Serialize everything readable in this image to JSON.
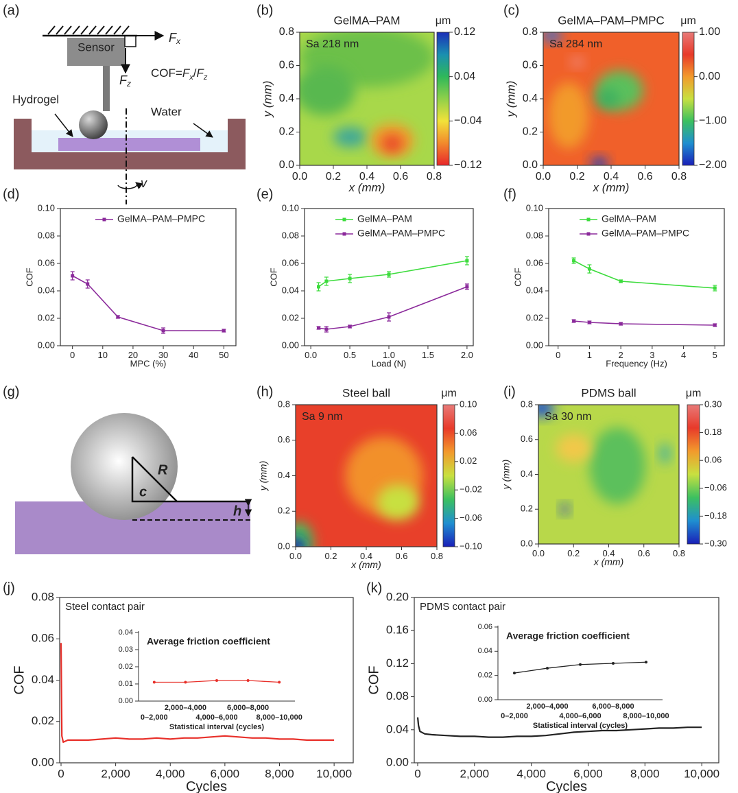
{
  "panel_labels": [
    "(a)",
    "(b)",
    "(c)",
    "(d)",
    "(e)",
    "(f)",
    "(g)",
    "(h)",
    "(i)",
    "(j)",
    "(k)"
  ],
  "diagram_a": {
    "sensor": "Sensor",
    "fx": {
      "text": "F",
      "sub": "x"
    },
    "fz": {
      "text": "F",
      "sub": "z"
    },
    "formula": {
      "lhs": "COF=",
      "num": {
        "text": "F",
        "sub": "x"
      },
      "sep": "/",
      "den": {
        "text": "F",
        "sub": "z"
      }
    },
    "hydrogel": "Hydrogel",
    "water": "Water",
    "speed": "v"
  },
  "diagram_g": {
    "radius": "R",
    "chord": "c",
    "depth": "h"
  },
  "chart_data": [
    {
      "type": "heatmap",
      "title": "GelMA–PAM",
      "annotation": "Sa 218 nm",
      "xlabel": "x (mm)",
      "ylabel": "y (mm)",
      "xlim": [
        0,
        0.8
      ],
      "ylim": [
        0,
        0.8
      ],
      "xticks": [
        {
          "value": 0,
          "label": "0.0"
        },
        0.2,
        0.4,
        0.6,
        0.8
      ],
      "yticks": [
        {
          "value": 0,
          "label": "0.0"
        },
        0.2,
        0.4,
        0.6,
        0.8
      ],
      "colorbar_label": "μm",
      "clim": [
        -0.12,
        0.12
      ],
      "cticks": [
        0.12,
        0.04,
        {
          "value": -0.04,
          "label": "−0.04"
        },
        {
          "value": -0.12,
          "label": "−0.12"
        }
      ],
      "colorscale": [
        "#e8262a",
        "#f28a2c",
        "#f2e23a",
        "#8fd04a",
        "#2fb85a",
        "#1a8fb0",
        "#1b2fb8"
      ]
    },
    {
      "type": "heatmap",
      "title": "GelMA–PAM–PMPC",
      "annotation": "Sa 284 nm",
      "xlabel": "x (mm)",
      "ylabel": "y (mm)",
      "xlim": [
        0,
        0.8
      ],
      "ylim": [
        0,
        0.8
      ],
      "xticks": [
        {
          "value": 0,
          "label": "0.0"
        },
        0.2,
        0.4,
        0.6,
        0.8
      ],
      "yticks": [
        {
          "value": 0,
          "label": "0.0"
        },
        0.2,
        0.4,
        0.6,
        0.8
      ],
      "colorbar_label": "μm",
      "clim": [
        -2,
        1
      ],
      "cticks": [
        {
          "value": 1,
          "label": "1.00"
        },
        {
          "value": 0,
          "label": "0.00"
        },
        {
          "value": -1,
          "label": "−1.00"
        },
        {
          "value": -2,
          "label": "−2.00"
        }
      ],
      "colorscale": [
        "#1a1fb8",
        "#1f8fd0",
        "#3cc060",
        "#c8e040",
        "#f29a2c",
        "#e83a2a",
        "#e87a78"
      ]
    },
    {
      "type": "line",
      "xlabel": "MPC (%)",
      "ylabel": "COF",
      "x": [
        0,
        5,
        15,
        30,
        50
      ],
      "xlim": [
        -4,
        54
      ],
      "xticks": [
        0,
        10,
        20,
        30,
        40,
        50
      ],
      "ylim": [
        0,
        0.1
      ],
      "yticks": [
        {
          "value": 0,
          "label": "0.00"
        },
        0.02,
        0.04,
        0.06,
        0.08,
        {
          "value": 0.1,
          "label": "0.10"
        }
      ],
      "legend": "upper right",
      "markers": true,
      "series": [
        {
          "name": "GelMA–PAM–PMPC",
          "color": "#8b2a9b",
          "values": [
            0.051,
            0.045,
            0.021,
            0.011,
            0.011
          ],
          "errors": [
            0.003,
            0.003,
            0.001,
            0.002,
            0.001
          ]
        }
      ]
    },
    {
      "type": "line",
      "xlabel": "Load (N)",
      "ylabel": "COF",
      "x": [
        0.1,
        0.2,
        0.5,
        1,
        2
      ],
      "xlim": [
        -0.08,
        2.08
      ],
      "xticks": [
        {
          "value": 0,
          "label": "0.0"
        },
        0.5,
        {
          "value": 1,
          "label": "1.0"
        },
        1.5,
        {
          "value": 2,
          "label": "2.0"
        }
      ],
      "ylim": [
        0,
        0.1
      ],
      "yticks": [
        {
          "value": 0,
          "label": "0.00"
        },
        0.02,
        0.04,
        0.06,
        0.08,
        {
          "value": 0.1,
          "label": "0.10"
        }
      ],
      "legend": "upper left",
      "markers": true,
      "series": [
        {
          "name": "GelMA–PAM",
          "color": "#3ddc3d",
          "values": [
            0.043,
            0.047,
            0.049,
            0.052,
            0.062
          ],
          "errors": [
            0.003,
            0.003,
            0.003,
            0.002,
            0.003
          ]
        },
        {
          "name": "GelMA–PAM–PMPC",
          "color": "#8b2a9b",
          "values": [
            0.013,
            0.012,
            0.014,
            0.021,
            0.043
          ],
          "errors": [
            0.001,
            0.002,
            0.001,
            0.003,
            0.002
          ]
        }
      ]
    },
    {
      "type": "line",
      "xlabel": "Frequency (Hz)",
      "ylabel": "COF",
      "x": [
        0.5,
        1,
        2,
        5
      ],
      "xlim": [
        -0.3,
        5.3
      ],
      "xticks": [
        0,
        1,
        2,
        3,
        4,
        5
      ],
      "ylim": [
        0,
        0.1
      ],
      "yticks": [
        {
          "value": 0,
          "label": "0.00"
        },
        0.02,
        0.04,
        0.06,
        0.08,
        {
          "value": 0.1,
          "label": "0.10"
        }
      ],
      "legend": "upper left",
      "markers": true,
      "series": [
        {
          "name": "GelMA–PAM",
          "color": "#3ddc3d",
          "values": [
            0.062,
            0.056,
            0.047,
            0.042
          ],
          "errors": [
            0.002,
            0.003,
            0.001,
            0.002
          ]
        },
        {
          "name": "GelMA–PAM–PMPC",
          "color": "#8b2a9b",
          "values": [
            0.018,
            0.017,
            0.016,
            0.015
          ],
          "errors": [
            0.001,
            0.001,
            0.001,
            0.001
          ]
        }
      ]
    },
    {
      "type": "heatmap",
      "title": "Steel ball",
      "annotation": "Sa 9 nm",
      "xlabel": "x (mm)",
      "ylabel": "y (mm)",
      "xlim": [
        0,
        0.8
      ],
      "ylim": [
        0,
        0.8
      ],
      "xticks": [
        {
          "value": 0,
          "label": "0.0"
        },
        0.2,
        0.4,
        0.6,
        0.8
      ],
      "yticks": [
        {
          "value": 0,
          "label": "0.0"
        },
        0.2,
        0.4,
        0.6,
        0.8
      ],
      "colorbar_label": "μm",
      "clim": [
        -0.1,
        0.1
      ],
      "cticks": [
        {
          "value": 0.1,
          "label": "0.10"
        },
        0.06,
        0.02,
        {
          "value": -0.02,
          "label": "−0.02"
        },
        {
          "value": -0.06,
          "label": "−0.06"
        },
        {
          "value": -0.1,
          "label": "−0.10"
        }
      ],
      "colorscale": [
        "#1a1fb8",
        "#1f8fd0",
        "#3cc060",
        "#c8e040",
        "#f29a2c",
        "#e83a2a",
        "#e87a78"
      ]
    },
    {
      "type": "heatmap",
      "title": "PDMS ball",
      "annotation": "Sa 30 nm",
      "xlabel": "x (mm)",
      "ylabel": "y (mm)",
      "xlim": [
        0,
        0.8
      ],
      "ylim": [
        0,
        0.8
      ],
      "xticks": [
        {
          "value": 0,
          "label": "0.0"
        },
        0.2,
        0.4,
        0.6,
        0.8
      ],
      "yticks": [
        {
          "value": 0,
          "label": "0.0"
        },
        0.2,
        0.4,
        0.6,
        0.8
      ],
      "colorbar_label": "μm",
      "clim": [
        -0.3,
        0.3
      ],
      "cticks": [
        {
          "value": 0.3,
          "label": "0.30"
        },
        0.18,
        0.06,
        {
          "value": -0.06,
          "label": "−0.06"
        },
        {
          "value": -0.18,
          "label": "−0.18"
        },
        {
          "value": -0.3,
          "label": "−0.30"
        }
      ],
      "colorscale": [
        "#1a1fb8",
        "#1f8fd0",
        "#3cc060",
        "#c8e040",
        "#f29a2c",
        "#e83a2a",
        "#e87a78"
      ]
    },
    {
      "type": "series",
      "annotation": "Steel contact pair",
      "xlabel": "Cycles",
      "ylabel": "COF",
      "color": "#e8302a",
      "x": [
        0,
        30,
        80,
        250,
        500,
        1000,
        1500,
        2000,
        2500,
        3000,
        3500,
        4000,
        4500,
        5000,
        5500,
        6000,
        6500,
        7000,
        7500,
        8000,
        8500,
        9000,
        9500,
        10000
      ],
      "values": [
        0.058,
        0.013,
        0.01,
        0.011,
        0.011,
        0.011,
        0.0115,
        0.012,
        0.0115,
        0.0115,
        0.012,
        0.0115,
        0.012,
        0.012,
        0.0125,
        0.013,
        0.0125,
        0.012,
        0.012,
        0.0115,
        0.0115,
        0.011,
        0.011,
        0.011
      ],
      "xlim": [
        -50,
        10700
      ],
      "xticks": [
        0,
        {
          "value": 2000,
          "label": "2,000"
        },
        {
          "value": 4000,
          "label": "4,000"
        },
        {
          "value": 6000,
          "label": "6,000"
        },
        {
          "value": 8000,
          "label": "8,000"
        },
        {
          "value": 10000,
          "label": "10,000"
        }
      ],
      "ylim": [
        0,
        0.08
      ],
      "yticks": [
        {
          "value": 0,
          "label": "0.00"
        },
        0.02,
        0.04,
        0.06,
        0.08
      ]
    },
    {
      "type": "inset",
      "title": "Average friction coefficient",
      "xlabel": "Statistical interval (cycles)",
      "color": "#e8302a",
      "categories": [
        "0–2,000",
        "2,000–4,000",
        "4,000–6,000",
        "6,000–8,000",
        "8,000–10,000"
      ],
      "values": [
        0.011,
        0.011,
        0.012,
        0.012,
        0.011
      ],
      "ylim": [
        0,
        0.04
      ],
      "yticks": [
        {
          "value": 0,
          "label": "0.00"
        },
        0.01,
        0.02,
        0.03,
        0.04
      ]
    },
    {
      "type": "series",
      "annotation": "PDMS contact pair",
      "xlabel": "Cycles",
      "ylabel": "COF",
      "color": "#222222",
      "x": [
        0,
        30,
        80,
        250,
        500,
        1000,
        1500,
        2000,
        2500,
        3000,
        3500,
        4000,
        4500,
        5000,
        5500,
        6000,
        6500,
        7000,
        7500,
        8000,
        8500,
        9000,
        9500,
        10000
      ],
      "values": [
        0.055,
        0.045,
        0.038,
        0.035,
        0.034,
        0.033,
        0.032,
        0.032,
        0.031,
        0.031,
        0.032,
        0.032,
        0.033,
        0.035,
        0.037,
        0.038,
        0.039,
        0.039,
        0.04,
        0.041,
        0.042,
        0.042,
        0.043,
        0.043
      ],
      "xlim": [
        -120,
        10600
      ],
      "xticks": [
        0,
        {
          "value": 2000,
          "label": "2,000"
        },
        {
          "value": 4000,
          "label": "4,000"
        },
        {
          "value": 6000,
          "label": "6,000"
        },
        {
          "value": 8000,
          "label": "8,000"
        },
        {
          "value": 10000,
          "label": "10,000"
        }
      ],
      "ylim": [
        0,
        0.2
      ],
      "yticks": [
        {
          "value": 0,
          "label": "0.00"
        },
        0.04,
        0.08,
        0.12,
        0.16,
        {
          "value": 0.2,
          "label": "0.20"
        }
      ]
    },
    {
      "type": "inset",
      "title": "Average friction coefficient",
      "xlabel": "Statistical interval (cycles)",
      "color": "#222222",
      "categories": [
        "0–2,000",
        "2,000–4,000",
        "4,000–6,000",
        "6,000–8,000",
        "8,000–10,000"
      ],
      "values": [
        0.022,
        0.026,
        0.029,
        0.03,
        0.031
      ],
      "ylim": [
        0,
        0.06
      ],
      "yticks": [
        {
          "value": 0,
          "label": "0.00"
        },
        0.02,
        0.04,
        0.06
      ]
    }
  ]
}
